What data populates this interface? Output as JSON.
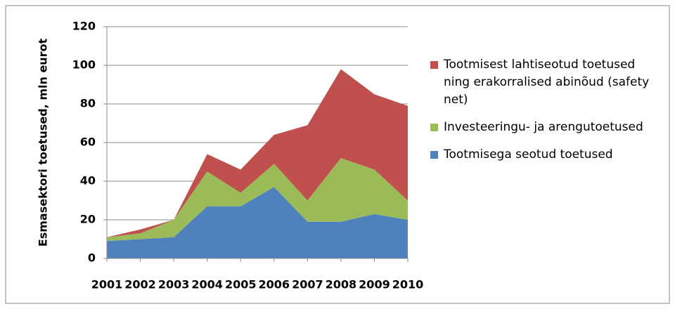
{
  "chart_data": {
    "type": "stacked-area",
    "y_label": "Esmasektori toetused, mln eurot",
    "categories": [
      "2001",
      "2002",
      "2003",
      "2004",
      "2005",
      "2006",
      "2007",
      "2008",
      "2009",
      "2010"
    ],
    "series": [
      {
        "name": "Tootmisega seotud toetused",
        "color": "#4f81bd",
        "values": [
          9,
          10,
          11,
          27,
          27,
          37,
          19,
          19,
          23,
          20
        ]
      },
      {
        "name": "Investeeringu- ja arengutoetused",
        "color": "#9bbb59",
        "values": [
          2,
          3,
          9,
          18,
          7,
          12,
          11,
          33,
          23,
          10
        ]
      },
      {
        "name": "Tootmisest lahtiseotud toetused ning erakorralised abinõud (safety net)",
        "color": "#c0504d",
        "values": [
          0,
          2,
          0,
          9,
          12,
          15,
          39,
          46,
          39,
          49
        ]
      }
    ],
    "ylim": [
      0,
      120
    ],
    "yticks": [
      0,
      20,
      40,
      60,
      80,
      100,
      120
    ],
    "grid": true,
    "legend": "right"
  }
}
